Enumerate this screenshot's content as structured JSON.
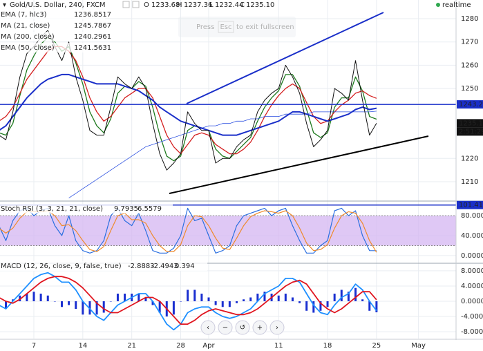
{
  "header": {
    "ohlc": [
      {
        "key": "O",
        "value": "1233.68"
      },
      {
        "key": "H",
        "value": "1237.36"
      },
      {
        "key": "L",
        "value": "1232.44"
      },
      {
        "key": "C",
        "value": "1235.10"
      }
    ],
    "status": "realtime",
    "overlay": [
      "Press",
      "Esc",
      "to exit fullscreen"
    ]
  },
  "chart_data": [
    {
      "type": "line",
      "title": "Gold/U.S. Dollar, 240, FXCM",
      "categories": [
        null,
        null,
        null,
        null,
        null,
        "7",
        null,
        null,
        null,
        null,
        null,
        null,
        "14",
        null,
        null,
        null,
        null,
        null,
        null,
        "21",
        null,
        null,
        null,
        null,
        null,
        null,
        "28",
        null,
        null,
        null,
        "Apr",
        null,
        null,
        null,
        null,
        null,
        null,
        null,
        null,
        null,
        "11",
        null,
        null,
        null,
        null,
        null,
        null,
        "18",
        null,
        null,
        null,
        null,
        null,
        null,
        "25",
        null,
        null,
        null,
        null,
        null,
        "May",
        null,
        null,
        null
      ],
      "ylim": [
        1202,
        1288
      ],
      "yticks": [
        1210,
        1220,
        1250,
        1260,
        1270,
        1280
      ],
      "grid": true,
      "series": [
        {
          "name": "EMA (7, hlc3)",
          "color": "#1e7a1e",
          "width": 1.3,
          "values": [
            1231,
            1230,
            1235,
            1247,
            1258,
            1264,
            1269,
            1272,
            1270,
            1266,
            1268,
            1261,
            1252,
            1240,
            1234,
            1231,
            1237,
            1248,
            1251,
            1250,
            1253,
            1251,
            1242,
            1230,
            1221,
            1219,
            1221,
            1232,
            1234,
            1233,
            1232,
            1224,
            1221,
            1220,
            1223,
            1226,
            1229,
            1236,
            1242,
            1246,
            1249,
            1256,
            1256,
            1251,
            1241,
            1231,
            1229,
            1231,
            1242,
            1246,
            1246,
            1255,
            1249,
            1238,
            1236.8517,
            null,
            null,
            null,
            null,
            null,
            null,
            null,
            null,
            null
          ]
        },
        {
          "name": "MA (21, close)",
          "color": "#d42020",
          "width": 1.3,
          "values": [
            1236,
            1238,
            1242,
            1248,
            1254,
            1258,
            1262,
            1266,
            1268,
            1268,
            1266,
            1262,
            1255,
            1246,
            1240,
            1236,
            1238,
            1242,
            1246,
            1248,
            1250,
            1250,
            1246,
            1238,
            1230,
            1225,
            1222,
            1226,
            1230,
            1231,
            1230,
            1226,
            1224,
            1222,
            1222,
            1224,
            1227,
            1232,
            1238,
            1243,
            1247,
            1250,
            1252,
            1250,
            1244,
            1238,
            1235,
            1236,
            1240,
            1243,
            1245,
            1248,
            1249,
            1247,
            1245.7867,
            null,
            null,
            null,
            null,
            null,
            null,
            null,
            null,
            null
          ]
        },
        {
          "name": "MA (200, close)",
          "color": "#2b4fe0",
          "width": 0.8,
          "values": [
            null,
            null,
            null,
            null,
            null,
            null,
            null,
            null,
            null,
            null,
            1203,
            1205,
            1207,
            1209,
            1211,
            1213,
            1215,
            1217,
            1219,
            1221,
            1223,
            1225,
            1226,
            1227,
            1228,
            1229,
            1230,
            1231,
            1232,
            1233,
            1234,
            1234,
            1235,
            1235,
            1236,
            1236,
            1237,
            1237,
            1238,
            1238,
            1238,
            1239,
            1239,
            1239,
            1239,
            1240,
            1240,
            1240,
            1240,
            1240,
            1240,
            1240,
            1240,
            1240,
            1240.2961,
            null,
            null,
            null,
            null,
            null,
            null,
            null,
            null,
            null
          ]
        },
        {
          "name": "EMA (50, close)",
          "color": "#1a2fc9",
          "width": 2,
          "values": [
            1232,
            1234,
            1238,
            1242,
            1246,
            1249,
            1252,
            1254,
            1255,
            1256,
            1256,
            1255,
            1254,
            1253,
            1252,
            1252,
            1252,
            1252,
            1251,
            1250,
            1249,
            1247,
            1245,
            1242,
            1240,
            1238,
            1236,
            1235,
            1234,
            1233,
            1232,
            1231,
            1230,
            1230,
            1230,
            1231,
            1232,
            1233,
            1234,
            1235,
            1236,
            1238,
            1240,
            1240,
            1239,
            1238,
            1237,
            1236,
            1237,
            1238,
            1239,
            1241,
            1242,
            1241,
            1241.5631,
            null,
            null,
            null,
            null,
            null,
            null,
            null,
            null,
            null
          ]
        },
        {
          "color": "#111111",
          "width": 1,
          "values": [
            1230,
            1228,
            1240,
            1255,
            1265,
            1268,
            1272,
            1275,
            1268,
            1262,
            1270,
            1255,
            1245,
            1232,
            1230,
            1230,
            1242,
            1255,
            1252,
            1250,
            1255,
            1250,
            1235,
            1222,
            1215,
            1218,
            1222,
            1240,
            1235,
            1232,
            1232,
            1218,
            1220,
            1220,
            1225,
            1228,
            1230,
            1240,
            1245,
            1248,
            1250,
            1260,
            1255,
            1248,
            1235,
            1225,
            1228,
            1232,
            1250,
            1248,
            1245,
            1262,
            1245,
            1230,
            1235.1,
            null,
            null,
            null,
            null,
            null,
            null,
            null,
            null,
            null
          ]
        }
      ],
      "markers": [
        {
          "value": 1243.2,
          "label": "1243.20",
          "color": "#1a2fc9"
        },
        {
          "value": 1235.1,
          "label": "1235.10",
          "color": "#111111"
        }
      ],
      "countdown": "2:51:29"
    },
    {
      "type": "line",
      "title": "Stoch RSI (3, 3, 21, 21, close)",
      "ylim": [
        -14,
        108
      ],
      "yticks": [
        {
          "value": 0,
          "label": "0.0000"
        },
        {
          "value": 40,
          "label": "40.0000"
        },
        {
          "value": 80,
          "label": "80.0000"
        }
      ],
      "band": [
        20,
        80
      ],
      "band_color": "#d4b5f2",
      "series": [
        {
          "color": "#2a6fe0",
          "width": 1.2,
          "values": [
            60,
            30,
            70,
            90,
            95,
            80,
            90,
            95,
            60,
            40,
            80,
            30,
            10,
            5,
            10,
            30,
            80,
            95,
            70,
            60,
            85,
            50,
            10,
            5,
            5,
            15,
            40,
            95,
            70,
            75,
            40,
            5,
            10,
            20,
            60,
            80,
            85,
            90,
            95,
            80,
            90,
            95,
            60,
            30,
            5,
            5,
            20,
            30,
            90,
            95,
            80,
            90,
            40,
            10,
            9.7935,
            null,
            null,
            null,
            null,
            null,
            null,
            null,
            null,
            null
          ]
        },
        {
          "color": "#ef8a2a",
          "width": 1.2,
          "values": [
            55,
            45,
            55,
            75,
            88,
            88,
            88,
            90,
            80,
            60,
            62,
            50,
            30,
            12,
            8,
            18,
            50,
            80,
            85,
            72,
            72,
            65,
            40,
            20,
            8,
            8,
            22,
            60,
            80,
            78,
            60,
            35,
            15,
            12,
            35,
            60,
            78,
            85,
            90,
            88,
            85,
            90,
            80,
            55,
            25,
            10,
            12,
            22,
            55,
            80,
            88,
            85,
            65,
            30,
            6.5579,
            null,
            null,
            null,
            null,
            null,
            null,
            null,
            null,
            null
          ]
        }
      ],
      "markers": [
        {
          "value": 101.416,
          "label": "101.416",
          "color": "#1a2fc9"
        }
      ]
    },
    {
      "type": "line",
      "title": "MACD (12, 26, close, 9, false, true)",
      "ylim": [
        -9.8,
        9.8
      ],
      "yticks": [
        {
          "value": 8,
          "label": "8.0000"
        },
        {
          "value": 4,
          "label": "4.0000"
        },
        {
          "value": 0,
          "label": "0.0000"
        },
        {
          "value": -4,
          "label": "-4.0000"
        },
        {
          "value": -8,
          "label": "-8.0000"
        }
      ],
      "series": [
        {
          "color": "#1a2fd0",
          "style": "bar",
          "values": [
            -2,
            -2,
            0.5,
            1.5,
            2,
            2.5,
            2,
            1.5,
            0,
            -1.5,
            -1,
            -2,
            -3.5,
            -3.5,
            -3.5,
            -3,
            0,
            2,
            2,
            2,
            2,
            1,
            -1,
            -3,
            -4,
            -3.5,
            0,
            3,
            3,
            2,
            1,
            -1,
            -1.5,
            -1.5,
            -0.5,
            0.5,
            1,
            2,
            2.5,
            2,
            1.5,
            2,
            1,
            -0.5,
            -2.5,
            -3,
            -2.5,
            -1.5,
            2,
            3,
            2.5,
            3.5,
            0.5,
            -2.5,
            -2.8883,
            null,
            null,
            null,
            null,
            null,
            null,
            null,
            null,
            null
          ]
        },
        {
          "color": "#1e90ff",
          "width": 1.8,
          "values": [
            -1,
            -2,
            0,
            2,
            4,
            6,
            7,
            7.5,
            6.5,
            5,
            5,
            3,
            0,
            -2,
            -4,
            -5,
            -3,
            -1,
            0,
            1,
            2,
            2,
            0,
            -3,
            -6,
            -7.5,
            -6,
            -3,
            -2,
            -1.5,
            -1.5,
            -3,
            -4,
            -4.5,
            -4,
            -3,
            -2,
            0,
            2,
            3,
            4,
            6,
            6,
            5,
            2,
            -1,
            -3,
            -3.5,
            -1,
            1,
            2,
            4.5,
            3,
            0,
            -2.4943,
            null,
            null,
            null,
            null,
            null,
            null,
            null,
            null,
            null
          ]
        },
        {
          "color": "#e0141e",
          "width": 1.8,
          "values": [
            1,
            0,
            -0.5,
            0.5,
            2,
            3.5,
            5,
            6,
            6.5,
            6.5,
            6,
            5,
            3.5,
            1.5,
            -0.5,
            -2,
            -3,
            -3,
            -2,
            -1,
            0,
            1,
            1,
            0,
            -2,
            -4,
            -6,
            -6,
            -5,
            -3.5,
            -2.5,
            -2,
            -2.5,
            -3,
            -3.5,
            -3.5,
            -3,
            -2,
            -0.5,
            1,
            2.5,
            4,
            5,
            5.5,
            4.5,
            2,
            -0.5,
            -2,
            -3,
            -2,
            -0.5,
            1,
            2.5,
            2.5,
            0.394,
            null,
            null,
            null,
            null,
            null,
            null,
            null,
            null,
            null
          ]
        }
      ]
    }
  ]
}
